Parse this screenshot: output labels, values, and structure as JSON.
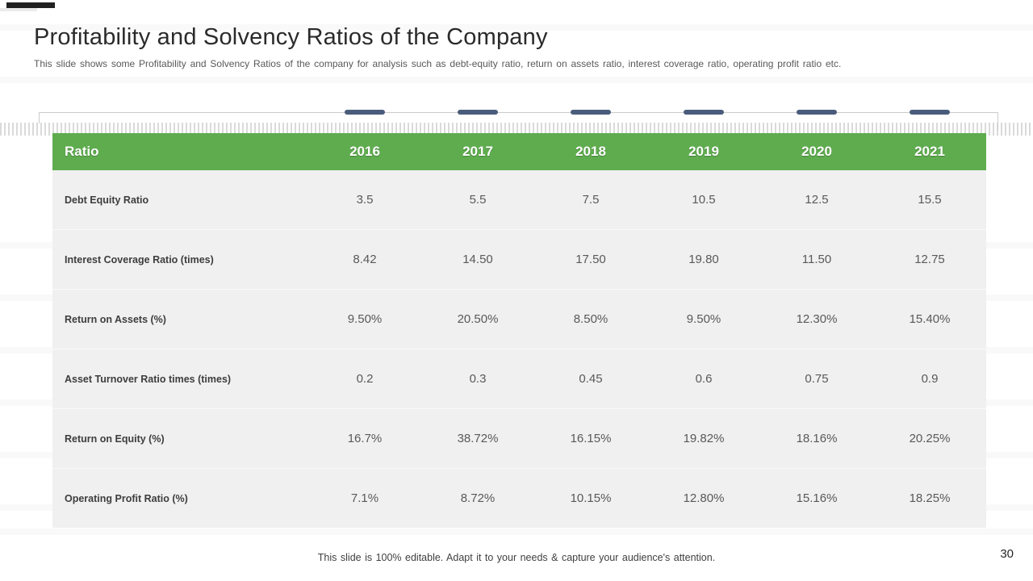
{
  "slide": {
    "title": "Profitability and Solvency Ratios of the Company",
    "subtitle": "This slide shows some Profitability and Solvency Ratios of the company for analysis such as debt-equity ratio, return on assets ratio, interest coverage ratio, operating profit ratio etc.",
    "footer_note": "This slide is 100% editable. Adapt it to your needs & capture your audience's attention.",
    "page_number": "30"
  },
  "colors": {
    "header_green": "#5FAC4F",
    "dash_blue": "#4A5C7B",
    "table_body_bg": "#F0F0F0",
    "line_gray": "#CBCBCB"
  },
  "chart_data": {
    "type": "table",
    "columns": [
      "Ratio",
      "2016",
      "2017",
      "2018",
      "2019",
      "2020",
      "2021"
    ],
    "rows": [
      {
        "label": "Debt Equity Ratio",
        "values": [
          "3.5",
          "5.5",
          "7.5",
          "10.5",
          "12.5",
          "15.5"
        ]
      },
      {
        "label": "Interest Coverage Ratio (times)",
        "values": [
          "8.42",
          "14.50",
          "17.50",
          "19.80",
          "11.50",
          "12.75"
        ]
      },
      {
        "label": "Return on Assets (%)",
        "values": [
          "9.50%",
          "20.50%",
          "8.50%",
          "9.50%",
          "12.30%",
          "15.40%"
        ]
      },
      {
        "label": "Asset Turnover Ratio times (times)",
        "values": [
          "0.2",
          "0.3",
          "0.45",
          "0.6",
          "0.75",
          "0.9"
        ]
      },
      {
        "label": "Return on Equity (%)",
        "values": [
          "16.7%",
          "38.72%",
          "16.15%",
          "19.82%",
          "18.16%",
          "20.25%"
        ]
      },
      {
        "label": "Operating Profit Ratio (%)",
        "values": [
          "7.1%",
          "8.72%",
          "10.15%",
          "12.80%",
          "15.16%",
          "18.25%"
        ]
      }
    ]
  }
}
